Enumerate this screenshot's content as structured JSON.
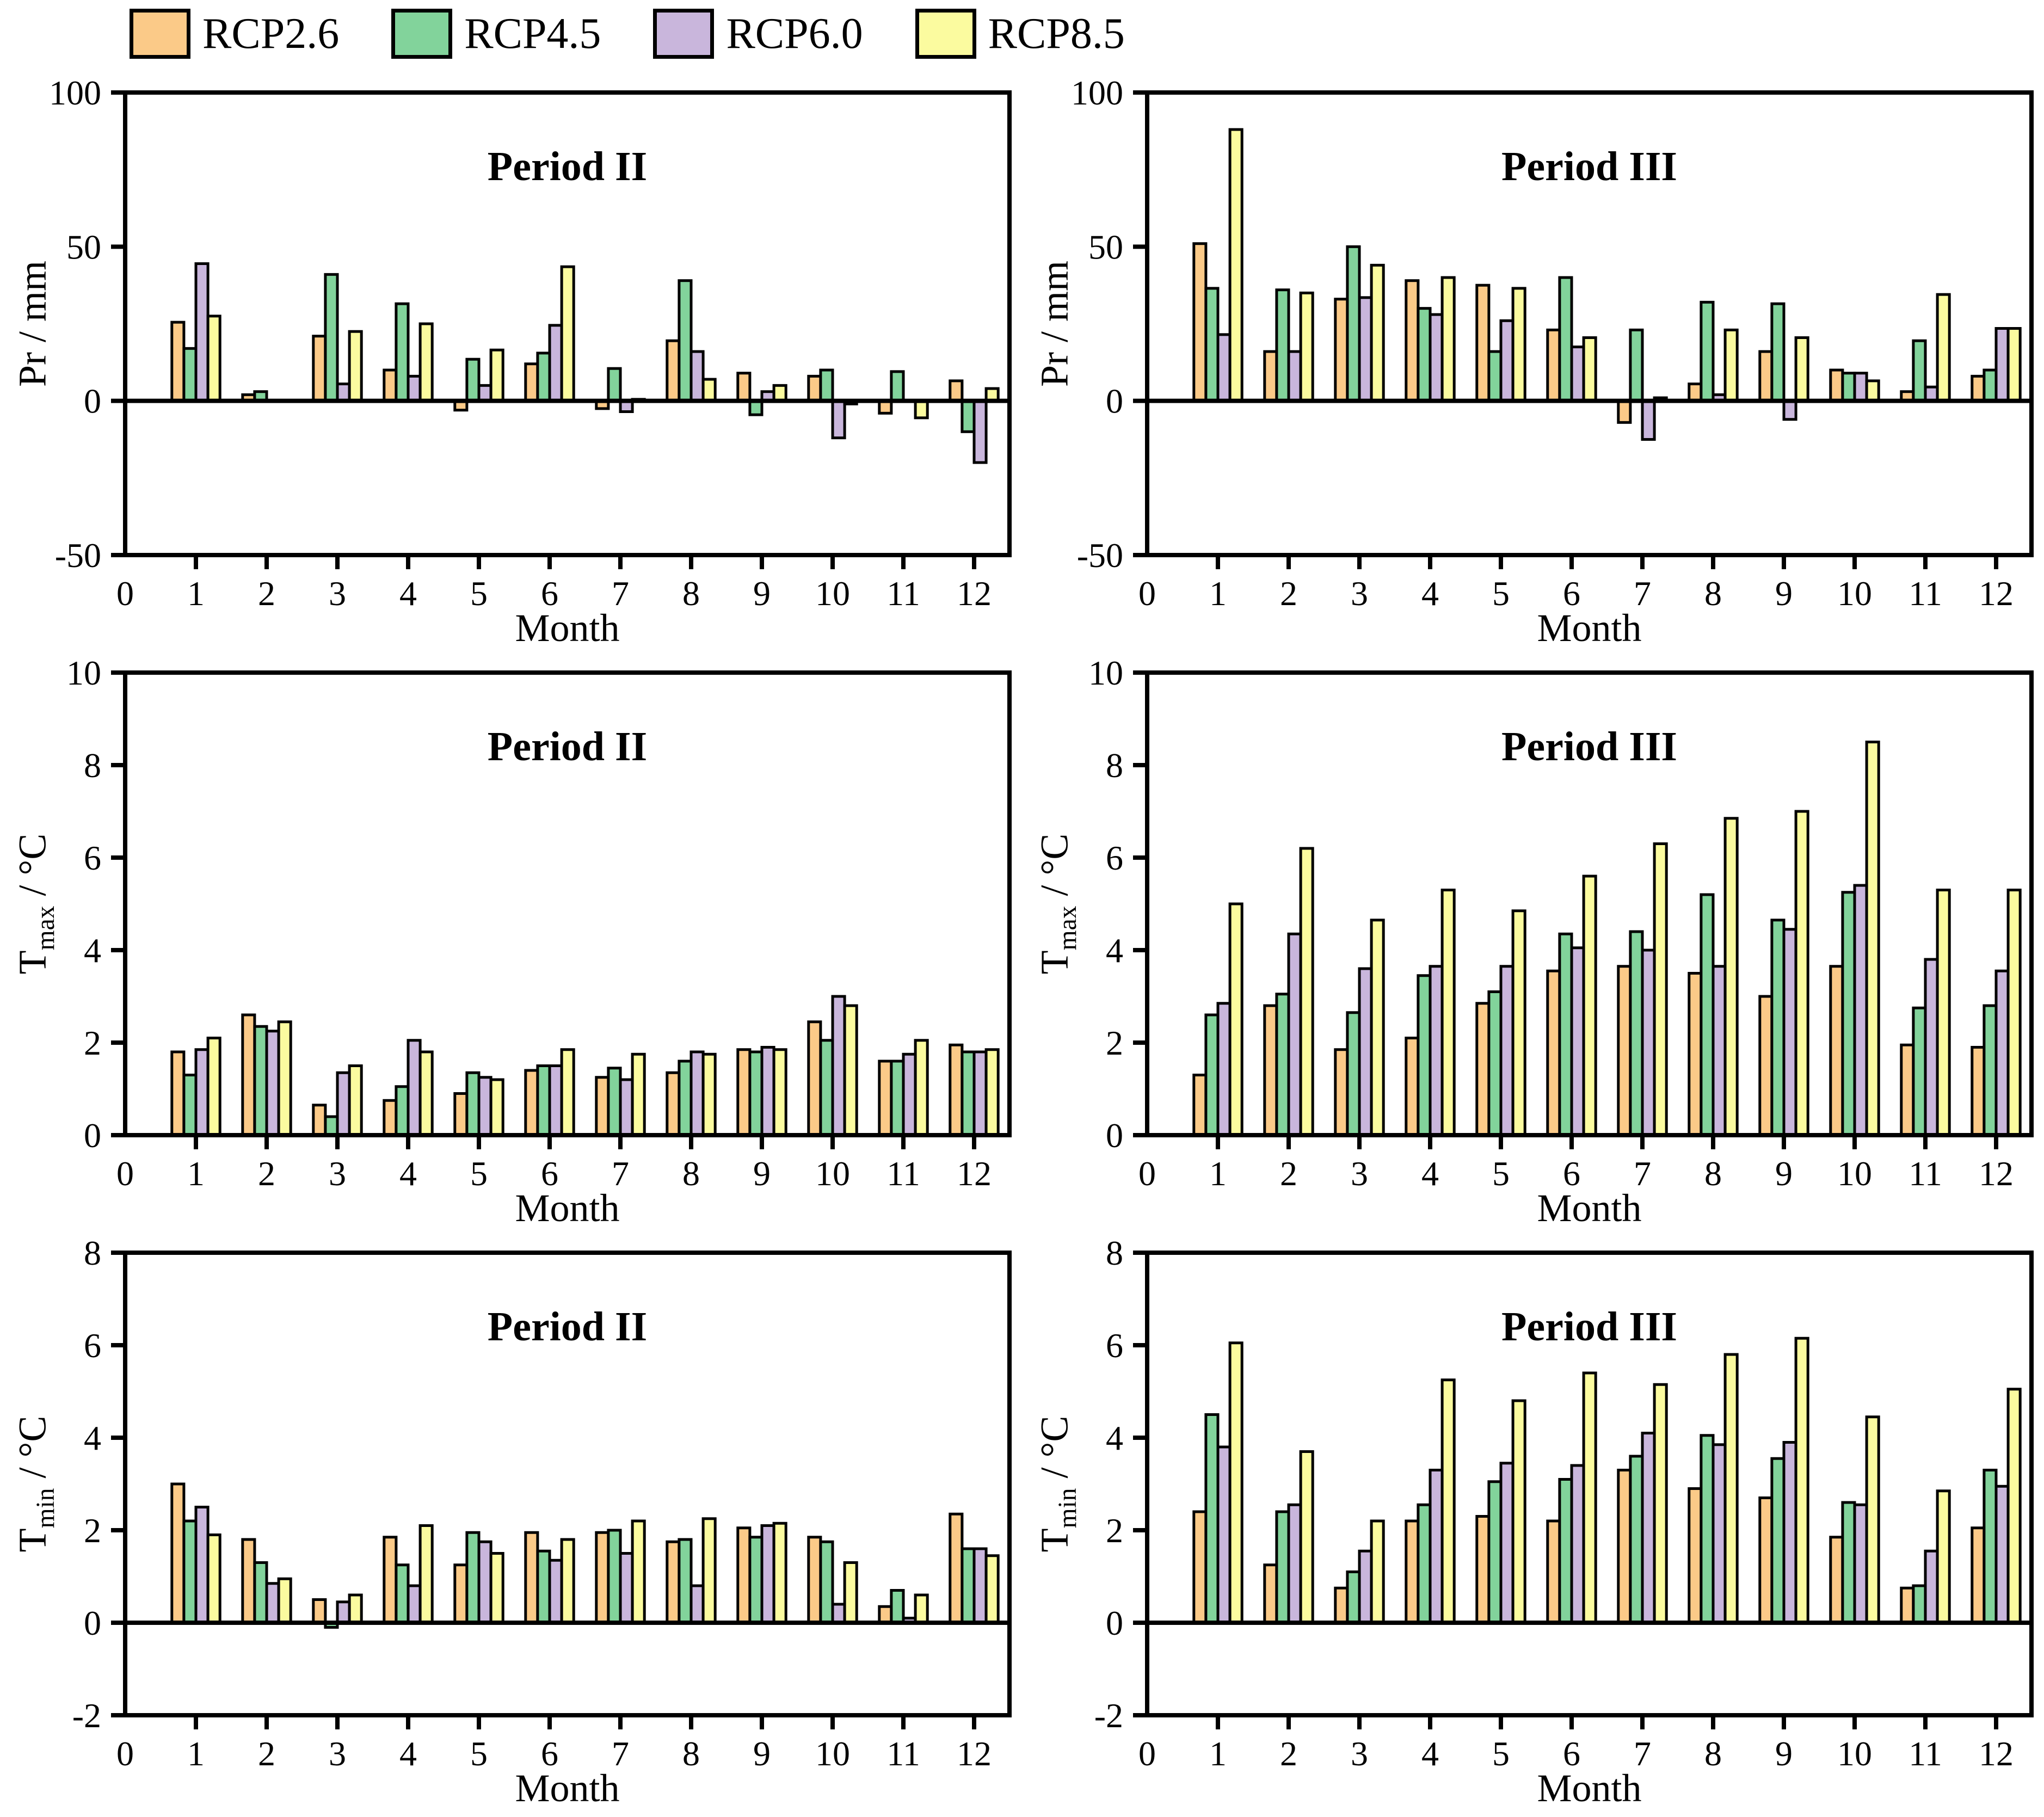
{
  "legend": [
    {
      "label": "RCP2.6",
      "color": "#FBCA88",
      "swatch_icon": "color-swatch"
    },
    {
      "label": "RCP4.5",
      "color": "#82D39B",
      "swatch_icon": "color-swatch"
    },
    {
      "label": "RCP6.0",
      "color": "#C9B6DC",
      "swatch_icon": "color-swatch"
    },
    {
      "label": "RCP8.5",
      "color": "#FBFB9F",
      "swatch_icon": "color-swatch"
    }
  ],
  "chart_data": [
    {
      "type": "bar",
      "title": "Period II",
      "xlabel": "Month",
      "ylabel": "Pr / mm",
      "ylabel_main": "Pr",
      "ylabel_sub": "",
      "ylabel_unit": " / mm",
      "ylim": [
        -50,
        100
      ],
      "yticks": [
        -50,
        0,
        50,
        100
      ],
      "xlim": [
        0,
        12.5
      ],
      "xticklabels": [
        0,
        1,
        2,
        3,
        4,
        5,
        6,
        7,
        8,
        9,
        10,
        11,
        12
      ],
      "categories": [
        1,
        2,
        3,
        4,
        5,
        6,
        7,
        8,
        9,
        10,
        11,
        12
      ],
      "grid": false,
      "legend_position": "top-outside",
      "series": [
        {
          "name": "RCP2.6",
          "values": [
            25.5,
            2,
            21,
            10,
            -3,
            12,
            -2.5,
            19.5,
            9,
            8,
            -4,
            6.5
          ]
        },
        {
          "name": "RCP4.5",
          "values": [
            17,
            3,
            41,
            31.5,
            13.5,
            15.5,
            10.5,
            39,
            -4.5,
            10,
            9.5,
            -10
          ]
        },
        {
          "name": "RCP6.0",
          "values": [
            44.5,
            0,
            5.5,
            8,
            5,
            24.5,
            -3.5,
            16,
            3,
            -12,
            0,
            -20
          ]
        },
        {
          "name": "RCP8.5",
          "values": [
            27.5,
            0,
            22.5,
            25,
            16.5,
            43.5,
            0.5,
            7,
            5,
            -1,
            -5.5,
            4
          ]
        }
      ]
    },
    {
      "type": "bar",
      "title": "Period III",
      "xlabel": "Month",
      "ylabel": "Pr / mm",
      "ylabel_main": "Pr",
      "ylabel_sub": "",
      "ylabel_unit": " / mm",
      "ylim": [
        -50,
        100
      ],
      "yticks": [
        -50,
        0,
        50,
        100
      ],
      "xlim": [
        0,
        12.5
      ],
      "xticklabels": [
        0,
        1,
        2,
        3,
        4,
        5,
        6,
        7,
        8,
        9,
        10,
        11,
        12
      ],
      "categories": [
        1,
        2,
        3,
        4,
        5,
        6,
        7,
        8,
        9,
        10,
        11,
        12
      ],
      "grid": false,
      "series": [
        {
          "name": "RCP2.6",
          "values": [
            51,
            16,
            33,
            39,
            37.5,
            23,
            -7,
            5.5,
            16,
            10,
            3,
            8
          ]
        },
        {
          "name": "RCP4.5",
          "values": [
            36.5,
            36,
            50,
            30,
            16,
            40,
            23,
            32,
            31.5,
            9,
            19.5,
            10
          ]
        },
        {
          "name": "RCP6.0",
          "values": [
            21.5,
            16,
            33.5,
            28,
            26,
            17.5,
            -12.5,
            2,
            -6,
            9,
            4.5,
            23.5
          ]
        },
        {
          "name": "RCP8.5",
          "values": [
            88,
            35,
            44,
            40,
            36.5,
            20.5,
            1,
            23,
            20.5,
            6.5,
            34.5,
            23.5
          ]
        }
      ]
    },
    {
      "type": "bar",
      "title": "Period II",
      "xlabel": "Month",
      "ylabel": "Tmax / °C",
      "ylabel_main": "T",
      "ylabel_sub": "max",
      "ylabel_unit": " / °C",
      "ylim": [
        0,
        10
      ],
      "yticks": [
        0,
        2,
        4,
        6,
        8,
        10
      ],
      "xlim": [
        0,
        12.5
      ],
      "xticklabels": [
        0,
        1,
        2,
        3,
        4,
        5,
        6,
        7,
        8,
        9,
        10,
        11,
        12
      ],
      "categories": [
        1,
        2,
        3,
        4,
        5,
        6,
        7,
        8,
        9,
        10,
        11,
        12
      ],
      "grid": false,
      "series": [
        {
          "name": "RCP2.6",
          "values": [
            1.8,
            2.6,
            0.65,
            0.75,
            0.9,
            1.4,
            1.25,
            1.35,
            1.85,
            2.45,
            1.6,
            1.95
          ]
        },
        {
          "name": "RCP4.5",
          "values": [
            1.3,
            2.35,
            0.4,
            1.05,
            1.35,
            1.5,
            1.45,
            1.6,
            1.8,
            2.05,
            1.6,
            1.8
          ]
        },
        {
          "name": "RCP6.0",
          "values": [
            1.85,
            2.25,
            1.35,
            2.05,
            1.25,
            1.5,
            1.2,
            1.8,
            1.9,
            3.0,
            1.75,
            1.8
          ]
        },
        {
          "name": "RCP8.5",
          "values": [
            2.1,
            2.45,
            1.5,
            1.8,
            1.2,
            1.85,
            1.75,
            1.75,
            1.85,
            2.8,
            2.05,
            1.85
          ]
        }
      ]
    },
    {
      "type": "bar",
      "title": "Period III",
      "xlabel": "Month",
      "ylabel": "Tmax / °C",
      "ylabel_main": "T",
      "ylabel_sub": "max",
      "ylabel_unit": " / °C",
      "ylim": [
        0,
        10
      ],
      "yticks": [
        0,
        2,
        4,
        6,
        8,
        10
      ],
      "xlim": [
        0,
        12.5
      ],
      "xticklabels": [
        0,
        1,
        2,
        3,
        4,
        5,
        6,
        7,
        8,
        9,
        10,
        11,
        12
      ],
      "categories": [
        1,
        2,
        3,
        4,
        5,
        6,
        7,
        8,
        9,
        10,
        11,
        12
      ],
      "grid": false,
      "series": [
        {
          "name": "RCP2.6",
          "values": [
            1.3,
            2.8,
            1.85,
            2.1,
            2.85,
            3.55,
            3.65,
            3.5,
            3.0,
            3.65,
            1.95,
            1.9
          ]
        },
        {
          "name": "RCP4.5",
          "values": [
            2.6,
            3.05,
            2.65,
            3.45,
            3.1,
            4.35,
            4.4,
            5.2,
            4.65,
            5.25,
            2.75,
            2.8
          ]
        },
        {
          "name": "RCP6.0",
          "values": [
            2.85,
            4.35,
            3.6,
            3.65,
            3.65,
            4.05,
            4.0,
            3.65,
            4.45,
            5.4,
            3.8,
            3.55
          ]
        },
        {
          "name": "RCP8.5",
          "values": [
            5.0,
            6.2,
            4.65,
            5.3,
            4.85,
            5.6,
            6.3,
            6.85,
            7.0,
            8.5,
            5.3,
            5.3
          ]
        }
      ]
    },
    {
      "type": "bar",
      "title": "Period II",
      "xlabel": "Month",
      "ylabel": "Tmin / °C",
      "ylabel_main": "T",
      "ylabel_sub": "min",
      "ylabel_unit": " / °C",
      "ylim": [
        -2,
        8
      ],
      "yticks": [
        -2,
        0,
        2,
        4,
        6,
        8
      ],
      "xlim": [
        0,
        12.5
      ],
      "xticklabels": [
        0,
        1,
        2,
        3,
        4,
        5,
        6,
        7,
        8,
        9,
        10,
        11,
        12
      ],
      "categories": [
        1,
        2,
        3,
        4,
        5,
        6,
        7,
        8,
        9,
        10,
        11,
        12
      ],
      "grid": false,
      "series": [
        {
          "name": "RCP2.6",
          "values": [
            3.0,
            1.8,
            0.5,
            1.85,
            1.25,
            1.95,
            1.95,
            1.75,
            2.05,
            1.85,
            0.35,
            2.35
          ]
        },
        {
          "name": "RCP4.5",
          "values": [
            2.2,
            1.3,
            -0.1,
            1.25,
            1.95,
            1.55,
            2.0,
            1.8,
            1.85,
            1.75,
            0.7,
            1.6
          ]
        },
        {
          "name": "RCP6.0",
          "values": [
            2.5,
            0.85,
            0.45,
            0.8,
            1.75,
            1.35,
            1.5,
            0.8,
            2.1,
            0.4,
            0.1,
            1.6
          ]
        },
        {
          "name": "RCP8.5",
          "values": [
            1.9,
            0.95,
            0.6,
            2.1,
            1.5,
            1.8,
            2.2,
            2.25,
            2.15,
            1.3,
            0.6,
            1.45
          ]
        }
      ]
    },
    {
      "type": "bar",
      "title": "Period III",
      "xlabel": "Month",
      "ylabel": "Tmin / °C",
      "ylabel_main": "T",
      "ylabel_sub": "min",
      "ylabel_unit": " / °C",
      "ylim": [
        -2,
        8
      ],
      "yticks": [
        -2,
        0,
        2,
        4,
        6,
        8
      ],
      "xlim": [
        0,
        12.5
      ],
      "xticklabels": [
        0,
        1,
        2,
        3,
        4,
        5,
        6,
        7,
        8,
        9,
        10,
        11,
        12
      ],
      "categories": [
        1,
        2,
        3,
        4,
        5,
        6,
        7,
        8,
        9,
        10,
        11,
        12
      ],
      "grid": false,
      "series": [
        {
          "name": "RCP2.6",
          "values": [
            2.4,
            1.25,
            0.75,
            2.2,
            2.3,
            2.2,
            3.3,
            2.9,
            2.7,
            1.85,
            0.75,
            2.05
          ]
        },
        {
          "name": "RCP4.5",
          "values": [
            4.5,
            2.4,
            1.1,
            2.55,
            3.05,
            3.1,
            3.6,
            4.05,
            3.55,
            2.6,
            0.8,
            3.3
          ]
        },
        {
          "name": "RCP6.0",
          "values": [
            3.8,
            2.55,
            1.55,
            3.3,
            3.45,
            3.4,
            4.1,
            3.85,
            3.9,
            2.55,
            1.55,
            2.95
          ]
        },
        {
          "name": "RCP8.5",
          "values": [
            6.05,
            3.7,
            2.2,
            5.25,
            4.8,
            5.4,
            5.15,
            5.8,
            6.15,
            4.45,
            2.85,
            5.05
          ]
        }
      ]
    }
  ],
  "style": {
    "bar_stroke": "#000000",
    "axis_color": "#000000",
    "background": "#ffffff"
  }
}
